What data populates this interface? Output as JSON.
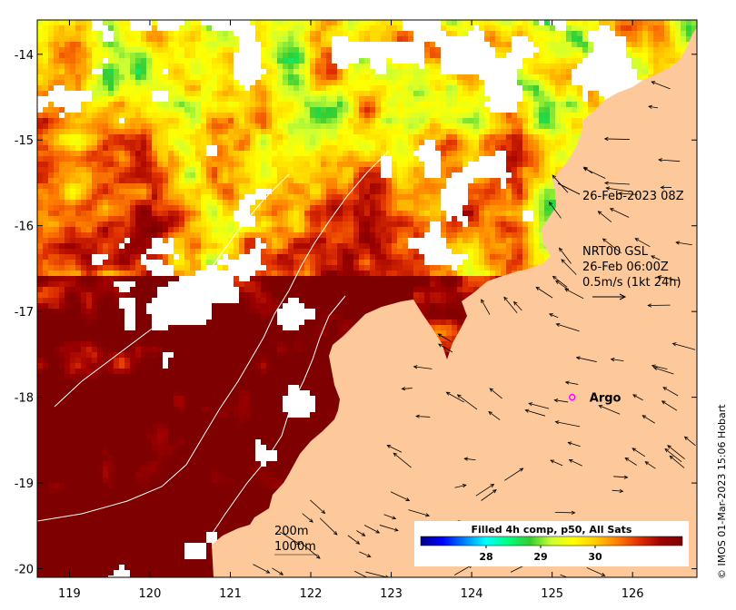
{
  "map": {
    "x_ticks": [
      "119",
      "120",
      "121",
      "122",
      "123",
      "124",
      "125",
      "126"
    ],
    "y_ticks": [
      "-14",
      "-15",
      "-16",
      "-17",
      "-18",
      "-19",
      "-20"
    ],
    "x_range": [
      118.6,
      126.8
    ],
    "y_range": [
      -20.1,
      -13.6
    ],
    "timestamp_label": "26-Feb-2023 08Z",
    "current_info": {
      "line1": "NRT00 GSL",
      "line2": "26-Feb 06:00Z",
      "line3": "0.5m/s (1kt 24h)"
    },
    "argo": {
      "label": "Argo",
      "lon": 125.25,
      "lat": -18.0,
      "color": "#ff00ff"
    },
    "contours": {
      "c200": "200m",
      "c1000": "1000m"
    },
    "credit": "© IMOS 01-Mar-2023 15:06 Hobart",
    "colors": {
      "land": "#fdc99a",
      "ocean_nodata": "#ffffff"
    }
  },
  "colorbar": {
    "title": "Filled 4h comp, p50, All Sats",
    "range": [
      26.8,
      31.6
    ],
    "ticks": [
      "28",
      "29",
      "30"
    ],
    "tick_values": [
      28,
      29,
      30
    ],
    "colormap": [
      "#00007f",
      "#0000ff",
      "#0080ff",
      "#00ffff",
      "#00ff80",
      "#33cc33",
      "#ccff33",
      "#ffff00",
      "#ffcc00",
      "#ff8000",
      "#e03000",
      "#a00000",
      "#7f0000"
    ]
  }
}
